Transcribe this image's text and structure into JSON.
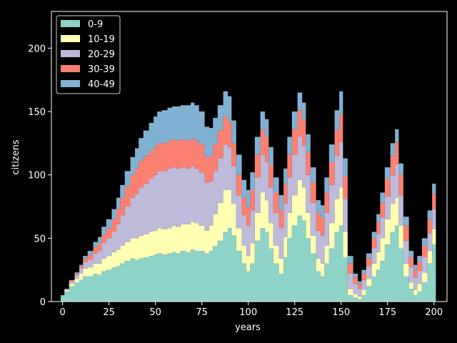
{
  "chart_data": {
    "type": "area",
    "xlabel": "years",
    "ylabel": "citizens",
    "xlim": [
      -6,
      207
    ],
    "ylim": [
      0,
      229
    ],
    "xticks": [
      0,
      25,
      50,
      75,
      100,
      125,
      150,
      175,
      200
    ],
    "yticks": [
      0,
      50,
      100,
      150,
      200
    ],
    "grid": false,
    "legend_position": "top-left",
    "x": [
      0,
      2,
      5,
      8,
      10,
      12,
      15,
      18,
      20,
      22,
      25,
      28,
      30,
      32,
      35,
      38,
      40,
      42,
      45,
      48,
      50,
      52,
      55,
      58,
      60,
      62,
      65,
      68,
      70,
      72,
      75,
      78,
      80,
      82,
      85,
      88,
      90,
      92,
      95,
      98,
      100,
      102,
      105,
      108,
      110,
      112,
      115,
      118,
      120,
      122,
      125,
      128,
      130,
      132,
      135,
      138,
      140,
      142,
      145,
      148,
      150,
      152,
      155,
      158,
      160,
      162,
      165,
      168,
      170,
      172,
      175,
      178,
      180,
      182,
      185,
      188,
      190,
      192,
      195,
      198,
      200
    ],
    "series": [
      {
        "name": "0-9",
        "color": "#8dd3c7",
        "values": [
          5,
          8,
          12,
          15,
          17,
          20,
          20,
          22,
          21,
          24,
          25,
          27,
          28,
          30,
          32,
          34,
          33,
          34,
          35,
          36,
          37,
          38,
          37,
          38,
          39,
          38,
          40,
          39,
          41,
          40,
          40,
          38,
          40,
          44,
          48,
          55,
          58,
          52,
          40,
          30,
          24,
          30,
          48,
          58,
          55,
          42,
          30,
          22,
          35,
          50,
          60,
          68,
          64,
          50,
          38,
          24,
          20,
          30,
          42,
          55,
          60,
          35,
          5,
          3,
          2,
          5,
          12,
          20,
          25,
          32,
          45,
          55,
          60,
          42,
          20,
          10,
          5,
          8,
          15,
          30,
          45
        ]
      },
      {
        "name": "10-19",
        "color": "#ffffb3",
        "values": [
          0,
          1,
          2,
          3,
          5,
          6,
          7,
          8,
          9,
          10,
          11,
          12,
          13,
          14,
          15,
          16,
          17,
          18,
          18,
          19,
          19,
          20,
          20,
          20,
          21,
          21,
          21,
          22,
          22,
          22,
          20,
          18,
          20,
          25,
          30,
          33,
          30,
          25,
          18,
          14,
          12,
          16,
          22,
          28,
          25,
          20,
          14,
          12,
          16,
          20,
          24,
          28,
          26,
          20,
          14,
          10,
          10,
          14,
          20,
          26,
          30,
          20,
          5,
          3,
          2,
          4,
          6,
          10,
          14,
          18,
          20,
          22,
          22,
          18,
          10,
          5,
          4,
          6,
          8,
          10,
          12
        ]
      },
      {
        "name": "20-29",
        "color": "#bebada",
        "values": [
          0,
          1,
          2,
          3,
          4,
          5,
          6,
          8,
          10,
          12,
          14,
          16,
          20,
          24,
          28,
          32,
          35,
          38,
          40,
          42,
          44,
          45,
          46,
          47,
          46,
          46,
          45,
          44,
          44,
          43,
          42,
          38,
          35,
          34,
          35,
          36,
          34,
          30,
          26,
          24,
          24,
          26,
          28,
          30,
          30,
          28,
          26,
          24,
          26,
          28,
          32,
          34,
          33,
          30,
          26,
          22,
          22,
          26,
          30,
          34,
          36,
          26,
          12,
          8,
          6,
          8,
          10,
          12,
          14,
          16,
          18,
          22,
          26,
          24,
          18,
          12,
          10,
          10,
          12,
          14,
          16
        ]
      },
      {
        "name": "30-39",
        "color": "#fb8072",
        "values": [
          0,
          0,
          1,
          1,
          2,
          3,
          4,
          5,
          6,
          7,
          8,
          10,
          12,
          14,
          16,
          18,
          20,
          21,
          22,
          22,
          22,
          22,
          22,
          22,
          22,
          22,
          22,
          22,
          22,
          22,
          22,
          20,
          20,
          21,
          22,
          22,
          20,
          18,
          16,
          14,
          14,
          16,
          18,
          20,
          20,
          18,
          16,
          14,
          16,
          18,
          20,
          21,
          20,
          18,
          16,
          14,
          14,
          16,
          18,
          20,
          22,
          18,
          8,
          5,
          4,
          5,
          6,
          8,
          10,
          12,
          14,
          16,
          18,
          16,
          12,
          8,
          6,
          7,
          9,
          11,
          12
        ]
      },
      {
        "name": "40-49",
        "color": "#80b1d3",
        "values": [
          0,
          0,
          0,
          1,
          1,
          2,
          3,
          4,
          5,
          6,
          7,
          8,
          9,
          10,
          12,
          14,
          16,
          18,
          20,
          22,
          24,
          25,
          26,
          26,
          26,
          27,
          27,
          28,
          28,
          28,
          26,
          24,
          22,
          21,
          20,
          20,
          20,
          18,
          16,
          14,
          14,
          14,
          14,
          14,
          14,
          14,
          12,
          12,
          12,
          14,
          14,
          14,
          14,
          14,
          12,
          10,
          10,
          12,
          14,
          16,
          18,
          14,
          6,
          3,
          2,
          3,
          4,
          5,
          6,
          8,
          9,
          10,
          10,
          9,
          7,
          5,
          4,
          5,
          6,
          7,
          8
        ]
      }
    ]
  }
}
